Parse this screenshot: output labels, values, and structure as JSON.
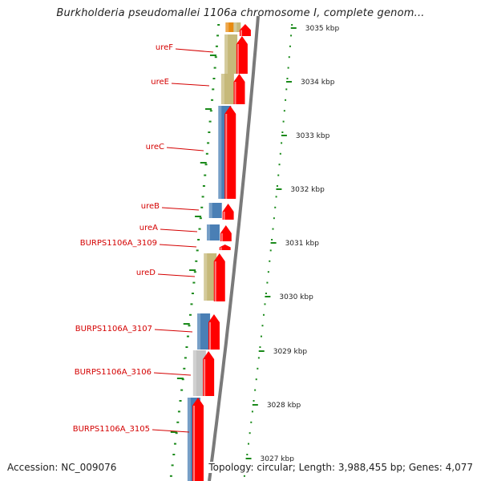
{
  "header": {
    "title": "Burkholderia pseudomallei 1106a chromosome I, complete genom..."
  },
  "footer": {
    "accession": "Accession: NC_009076",
    "summary": "Topology: circular; Length: 3,988,455 bp; Genes: 4,077"
  },
  "colors": {
    "label_text": "#d40000",
    "label_line": "#d40000",
    "forward_arrow": "#ff0000",
    "backbone": "#7a7a7a",
    "tick": "#1a8a1a",
    "gene_blue": "#4a7fb5",
    "gene_khaki": "#c6b97a",
    "gene_gray": "#c2c2c2",
    "gene_orange": "#e88a10"
  },
  "kbp_labels": [
    "3035 kbp",
    "3034 kbp",
    "3033 kbp",
    "3032 kbp",
    "3031 kbp",
    "3030 kbp",
    "3029 kbp",
    "3028 kbp",
    "3027 kbp"
  ],
  "genes": [
    {
      "label": "ureF",
      "color": "khaki"
    },
    {
      "label": "ureE",
      "color": "khaki"
    },
    {
      "label": "ureC",
      "color": "blue"
    },
    {
      "label": "ureB",
      "color": "blue"
    },
    {
      "label": "ureA",
      "color": "blue"
    },
    {
      "label": "BURPS1106A_3109",
      "color": ""
    },
    {
      "label": "ureD",
      "color": "khaki"
    },
    {
      "label": "BURPS1106A_3107",
      "color": "blue"
    },
    {
      "label": "BURPS1106A_3106",
      "color": "gray"
    },
    {
      "label": "BURPS1106A_3105",
      "color": "blue"
    }
  ]
}
